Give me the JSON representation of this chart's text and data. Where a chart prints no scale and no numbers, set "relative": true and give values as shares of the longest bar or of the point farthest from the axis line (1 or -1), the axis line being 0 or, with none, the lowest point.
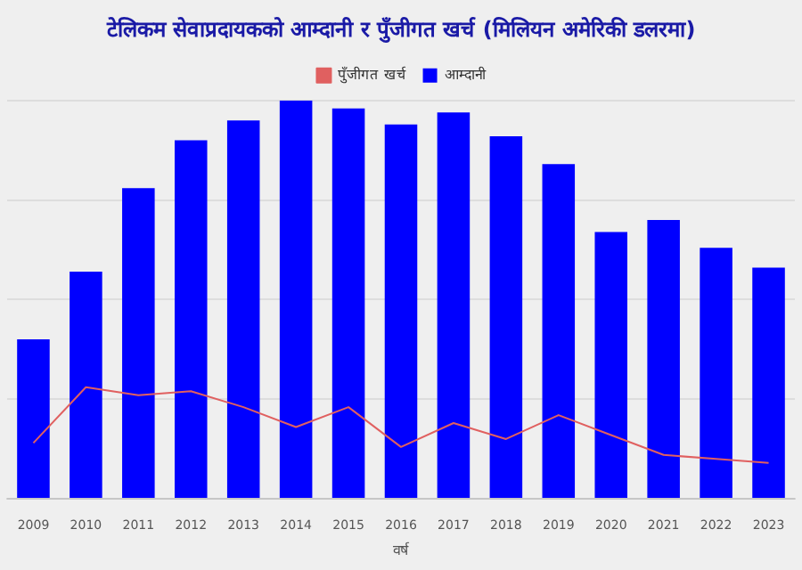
{
  "chart_data": {
    "type": "bar",
    "title": "टेलिकम सेवाप्रदायकको आम्दानी र पुँजीगत खर्च (मिलियन अमेरिकी डलरमा)",
    "xlabel": "वर्ष",
    "categories": [
      "2009",
      "2010",
      "2011",
      "2012",
      "2013",
      "2014",
      "2015",
      "2016",
      "2017",
      "2018",
      "2019",
      "2020",
      "2021",
      "2022",
      "2023"
    ],
    "relative": true,
    "grid": "y",
    "legend": "top",
    "series": [
      {
        "name": "पुँजीगत खर्च",
        "type": "line",
        "color": "#e06060",
        "marker": "none",
        "values": [
          0.14,
          0.28,
          0.26,
          0.27,
          0.23,
          0.18,
          0.23,
          0.13,
          0.19,
          0.15,
          0.21,
          0.16,
          0.11,
          0.1,
          0.09
        ]
      },
      {
        "name": "आम्दानी",
        "color": "#0000ff",
        "values": [
          0.4,
          0.57,
          0.78,
          0.9,
          0.95,
          1,
          0.98,
          0.94,
          0.97,
          0.91,
          0.84,
          0.67,
          0.7,
          0.63,
          0.58
        ]
      }
    ]
  }
}
